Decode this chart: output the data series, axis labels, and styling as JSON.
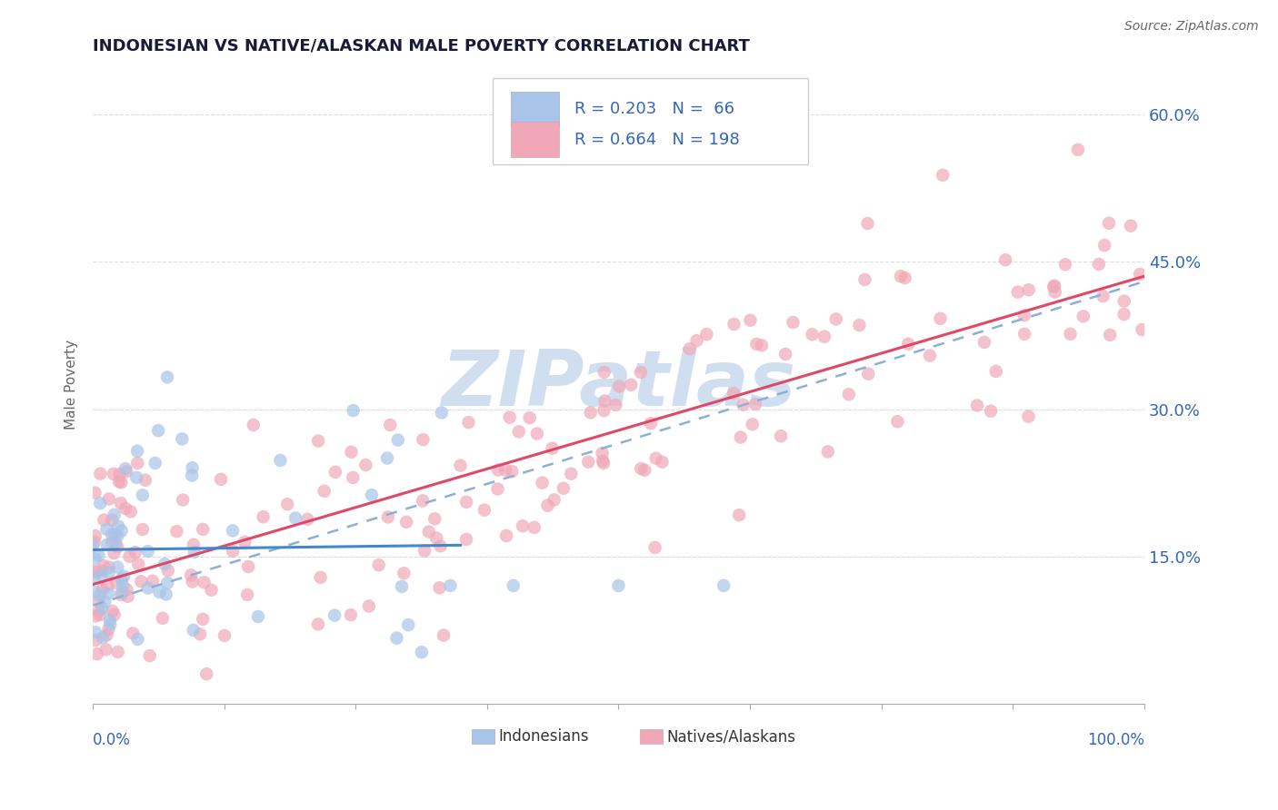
{
  "title": "INDONESIAN VS NATIVE/ALASKAN MALE POVERTY CORRELATION CHART",
  "source": "Source: ZipAtlas.com",
  "ylabel": "Male Poverty",
  "r_indonesian": 0.203,
  "n_indonesian": 66,
  "r_native": 0.664,
  "n_native": 198,
  "xlim": [
    0,
    100
  ],
  "ylim": [
    0,
    65
  ],
  "yticks": [
    15,
    30,
    45,
    60
  ],
  "color_indonesian": "#a8c4e8",
  "color_native": "#f0a8b8",
  "line_color_indonesian": "#4488cc",
  "line_color_native": "#e04868",
  "line_color_dashed": "#8ab0d8",
  "watermark_text": "ZIPatlas",
  "watermark_color": "#d0dff0",
  "title_color": "#1a1a3a",
  "axis_label_color": "#3366bb",
  "legend_r_color": "#3366bb",
  "background_color": "#ffffff",
  "grid_color": "#dddddd",
  "legend_box_color": "#eeeeee"
}
